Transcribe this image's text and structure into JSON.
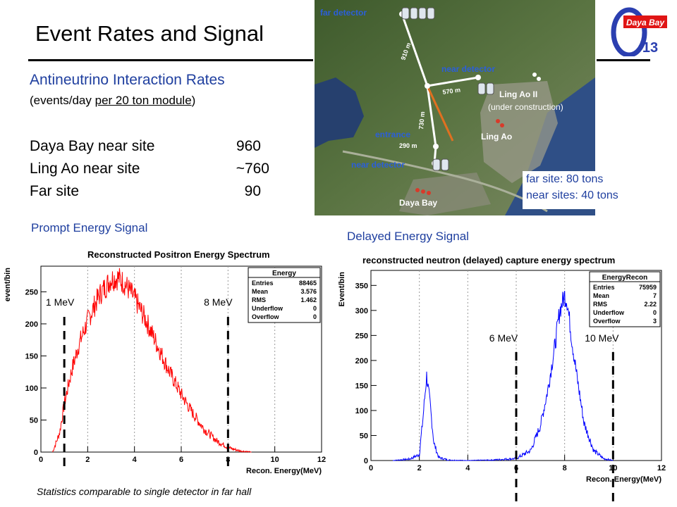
{
  "slide": {
    "title": "Event Rates and Signal",
    "rates_heading": "Antineutrino Interaction Rates",
    "rates_sub_prefix": "(events/day ",
    "rates_sub_underlined": "per 20 ton module",
    "rates_sub_suffix": ")",
    "rates": [
      {
        "site": "Daya Bay near site",
        "value": "960"
      },
      {
        "site": "Ling Ao near site",
        "value": "~760"
      },
      {
        "site": "Far site",
        "value": "90"
      }
    ],
    "map_labels": {
      "far_detector": "far detector",
      "near_detector_top": "near detector",
      "ling_ao_ii": "Ling Ao II",
      "under_construction": "(under construction)",
      "ling_ao": "Ling Ao",
      "entrance": "entrance",
      "near_detector_bottom": "near detector",
      "daya_bay": "Daya Bay",
      "dist_910": "910 m",
      "dist_570": "570 m",
      "dist_730": "730 m",
      "dist_290": "290 m"
    },
    "logo": {
      "text": "Daya Bay",
      "sub": "13"
    },
    "mass_note": [
      "far site: 80 tons",
      "near sites: 40 tons"
    ],
    "prompt_heading": "Prompt Energy Signal",
    "delayed_heading": "Delayed Energy Signal",
    "stats_note": "Statistics comparable to single detector in far hall",
    "colors": {
      "accent_blue": "#1f3f9f",
      "prompt_series": "#ff0000",
      "delayed_series": "#0000ff"
    }
  },
  "chart_data": [
    {
      "type": "line",
      "title": "Reconstructed Positron Energy Spectrum",
      "xlabel": "Recon. Energy(MeV)",
      "ylabel": "event/bin",
      "xlim": [
        0,
        12
      ],
      "ylim": [
        0,
        290
      ],
      "xticks": [
        0,
        2,
        4,
        6,
        8,
        10,
        12
      ],
      "yticks": [
        0,
        50,
        100,
        150,
        200,
        250
      ],
      "grid": "vertical",
      "series": [
        {
          "name": "",
          "color": "#ff0000",
          "x": [
            0.5,
            0.8,
            1.0,
            1.3,
            1.6,
            2.0,
            2.5,
            3.0,
            3.3,
            3.6,
            4.0,
            4.5,
            5.0,
            5.5,
            6.0,
            6.5,
            7.0,
            7.5,
            8.0,
            8.5,
            9.0
          ],
          "y": [
            0,
            30,
            75,
            125,
            165,
            205,
            245,
            270,
            272,
            262,
            240,
            205,
            165,
            125,
            90,
            60,
            35,
            18,
            7,
            2,
            0
          ]
        }
      ],
      "stats_box": {
        "title": "Energy",
        "rows": [
          [
            "Entries",
            "88465"
          ],
          [
            "Mean",
            "3.576"
          ],
          [
            "RMS",
            "1.462"
          ],
          [
            "Underflow",
            "0"
          ],
          [
            "Overflow",
            "0"
          ]
        ]
      },
      "cut_lines": [
        {
          "x": 1,
          "label": "1 MeV"
        },
        {
          "x": 8,
          "label": "8 MeV"
        }
      ]
    },
    {
      "type": "line",
      "title": "reconstructed neutron (delayed) capture energy spectrum",
      "xlabel": "Recon. Energy(MeV)",
      "ylabel": "Event/bin",
      "xlim": [
        0,
        12
      ],
      "ylim": [
        0,
        380
      ],
      "xticks": [
        0,
        2,
        4,
        6,
        8,
        10,
        12
      ],
      "yticks": [
        0,
        50,
        100,
        150,
        200,
        250,
        300,
        350
      ],
      "grid": "vertical",
      "series": [
        {
          "name": "",
          "color": "#0000ff",
          "x": [
            0.9,
            1.6,
            2.0,
            2.15,
            2.3,
            2.45,
            2.6,
            2.8,
            3.2,
            4.0,
            5.0,
            6.0,
            6.6,
            7.0,
            7.3,
            7.6,
            7.8,
            8.0,
            8.1,
            8.3,
            8.5,
            8.8,
            9.2,
            9.6,
            10.0
          ],
          "y": [
            0,
            3,
            12,
            85,
            170,
            110,
            35,
            6,
            1,
            0,
            1,
            4,
            20,
            70,
            140,
            230,
            300,
            330,
            320,
            240,
            170,
            75,
            20,
            4,
            0
          ]
        }
      ],
      "stats_box": {
        "title": "EnergyRecon",
        "rows": [
          [
            "Entries",
            "75959"
          ],
          [
            "Mean",
            "7"
          ],
          [
            "RMS",
            "2.22"
          ],
          [
            "Underflow",
            "0"
          ],
          [
            "Overflow",
            "3"
          ]
        ]
      },
      "cut_lines": [
        {
          "x": 6,
          "label": "6 MeV"
        },
        {
          "x": 10,
          "label": "10 MeV"
        }
      ]
    }
  ]
}
